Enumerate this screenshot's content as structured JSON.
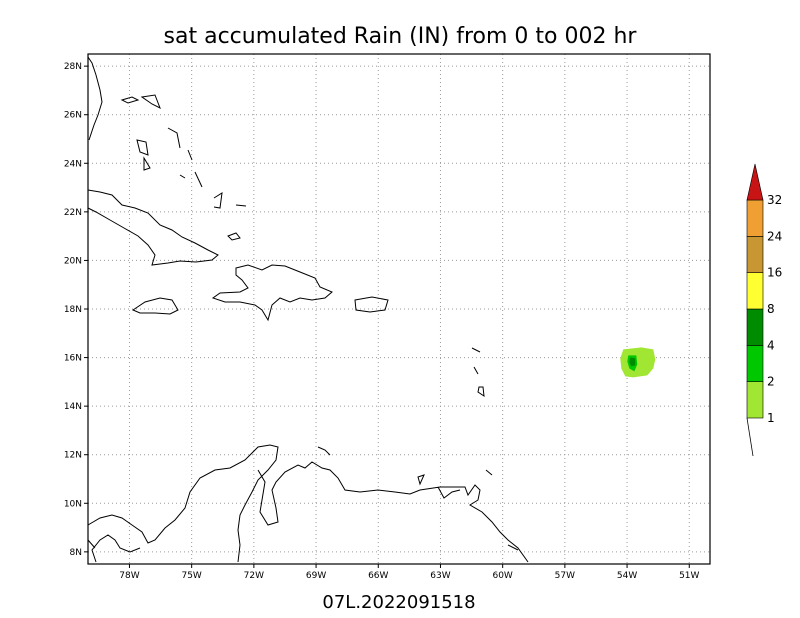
{
  "title": "sat accumulated Rain (IN) from 0 to 002 hr",
  "footer": "07L.2022091518",
  "map": {
    "lon_range": [
      -80,
      -50
    ],
    "lat_range": [
      7.5,
      28.5
    ],
    "lon_ticks": [
      {
        "value": -78,
        "label": "78W"
      },
      {
        "value": -75,
        "label": "75W"
      },
      {
        "value": -72,
        "label": "72W"
      },
      {
        "value": -69,
        "label": "69W"
      },
      {
        "value": -66,
        "label": "66W"
      },
      {
        "value": -63,
        "label": "63W"
      },
      {
        "value": -60,
        "label": "60W"
      },
      {
        "value": -57,
        "label": "57W"
      },
      {
        "value": -54,
        "label": "54W"
      },
      {
        "value": -51,
        "label": "51W"
      }
    ],
    "lat_ticks": [
      {
        "value": 28,
        "label": "28N"
      },
      {
        "value": 26,
        "label": "26N"
      },
      {
        "value": 24,
        "label": "24N"
      },
      {
        "value": 22,
        "label": "22N"
      },
      {
        "value": 20,
        "label": "20N"
      },
      {
        "value": 18,
        "label": "18N"
      },
      {
        "value": 16,
        "label": "16N"
      },
      {
        "value": 14,
        "label": "14N"
      },
      {
        "value": 12,
        "label": "12N"
      },
      {
        "value": 10,
        "label": "10N"
      },
      {
        "value": 8,
        "label": "8N"
      }
    ],
    "grid": true,
    "rain_area": {
      "center_lon": -53.7,
      "center_lat": 15.8,
      "max_category_in": 4
    }
  },
  "colorbar": {
    "levels": [
      {
        "label": "1",
        "color": "#a0e632"
      },
      {
        "label": "2",
        "color": "#00c800"
      },
      {
        "label": "4",
        "color": "#008c00"
      },
      {
        "label": "8",
        "color": "#ffff32"
      },
      {
        "label": "16",
        "color": "#c89632"
      },
      {
        "label": "24",
        "color": "#f0a032"
      },
      {
        "label": "32",
        "color": "#c81414"
      }
    ]
  }
}
